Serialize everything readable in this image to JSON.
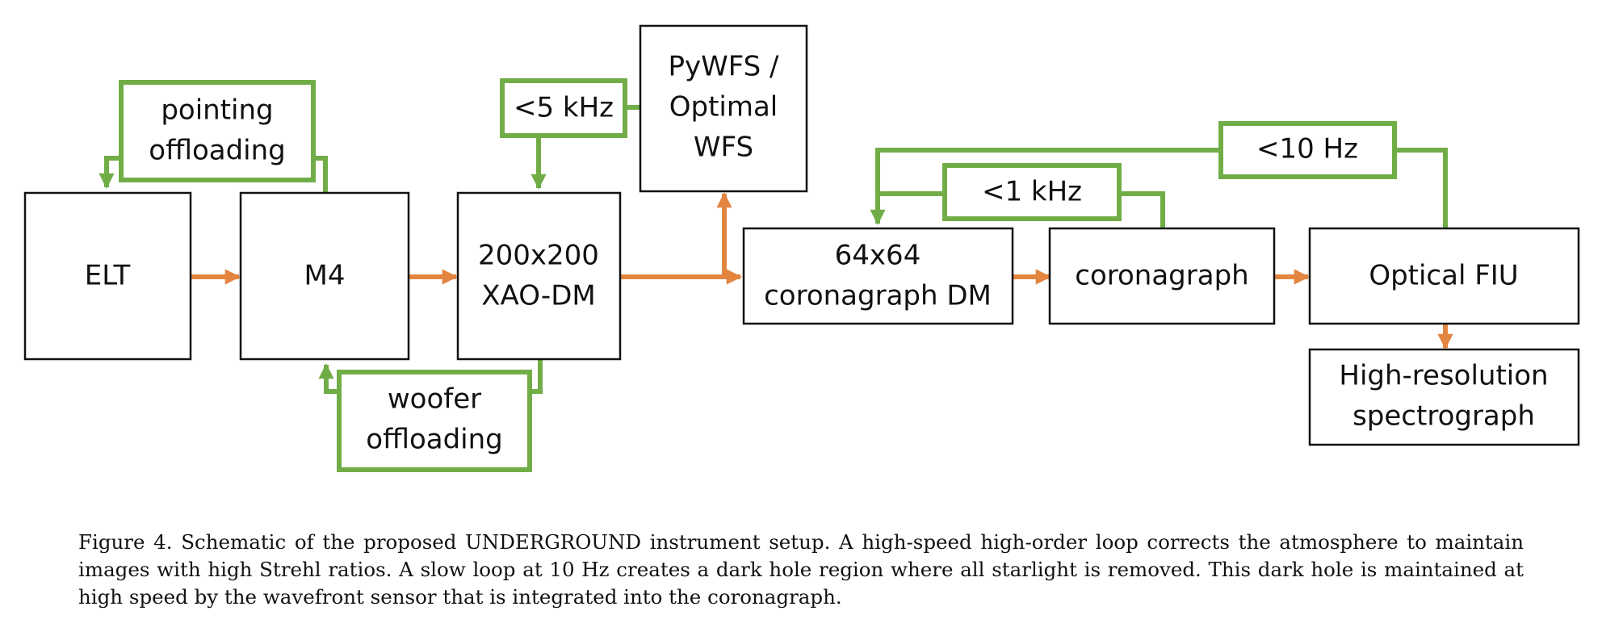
{
  "boxes": {
    "elt": "ELT",
    "m4": "M4",
    "xao_dm_line1": "200x200",
    "xao_dm_line2": "XAO-DM",
    "pywfs_line1": "PyWFS /",
    "pywfs_line2": "Optimal",
    "pywfs_line3": "WFS",
    "coro_dm_line1": "64x64",
    "coro_dm_line2": "coronagraph DM",
    "coronagraph": "coronagraph",
    "optical_fiu": "Optical FIU",
    "spectrograph_line1": "High-resolution",
    "spectrograph_line2": "spectrograph"
  },
  "loops": {
    "pointing_line1": "pointing",
    "pointing_line2": "offloading",
    "woofer_line1": "woofer",
    "woofer_line2": "offloading",
    "khz5": "<5 kHz",
    "khz1": "<1 kHz",
    "hz10": "<10 Hz"
  },
  "caption": "Figure 4. Schematic of the proposed UNDERGROUND instrument setup. A high-speed high-order loop corrects the atmosphere to maintain images with high Strehl ratios. A slow loop at 10 Hz creates a dark hole region where all starlight is removed. This dark hole is maintained at high speed by the wavefront sensor that is integrated into the coronagraph.",
  "colors": {
    "optical_path": "#E3843F",
    "control_loop": "#70AD47",
    "box_border": "#111111"
  }
}
